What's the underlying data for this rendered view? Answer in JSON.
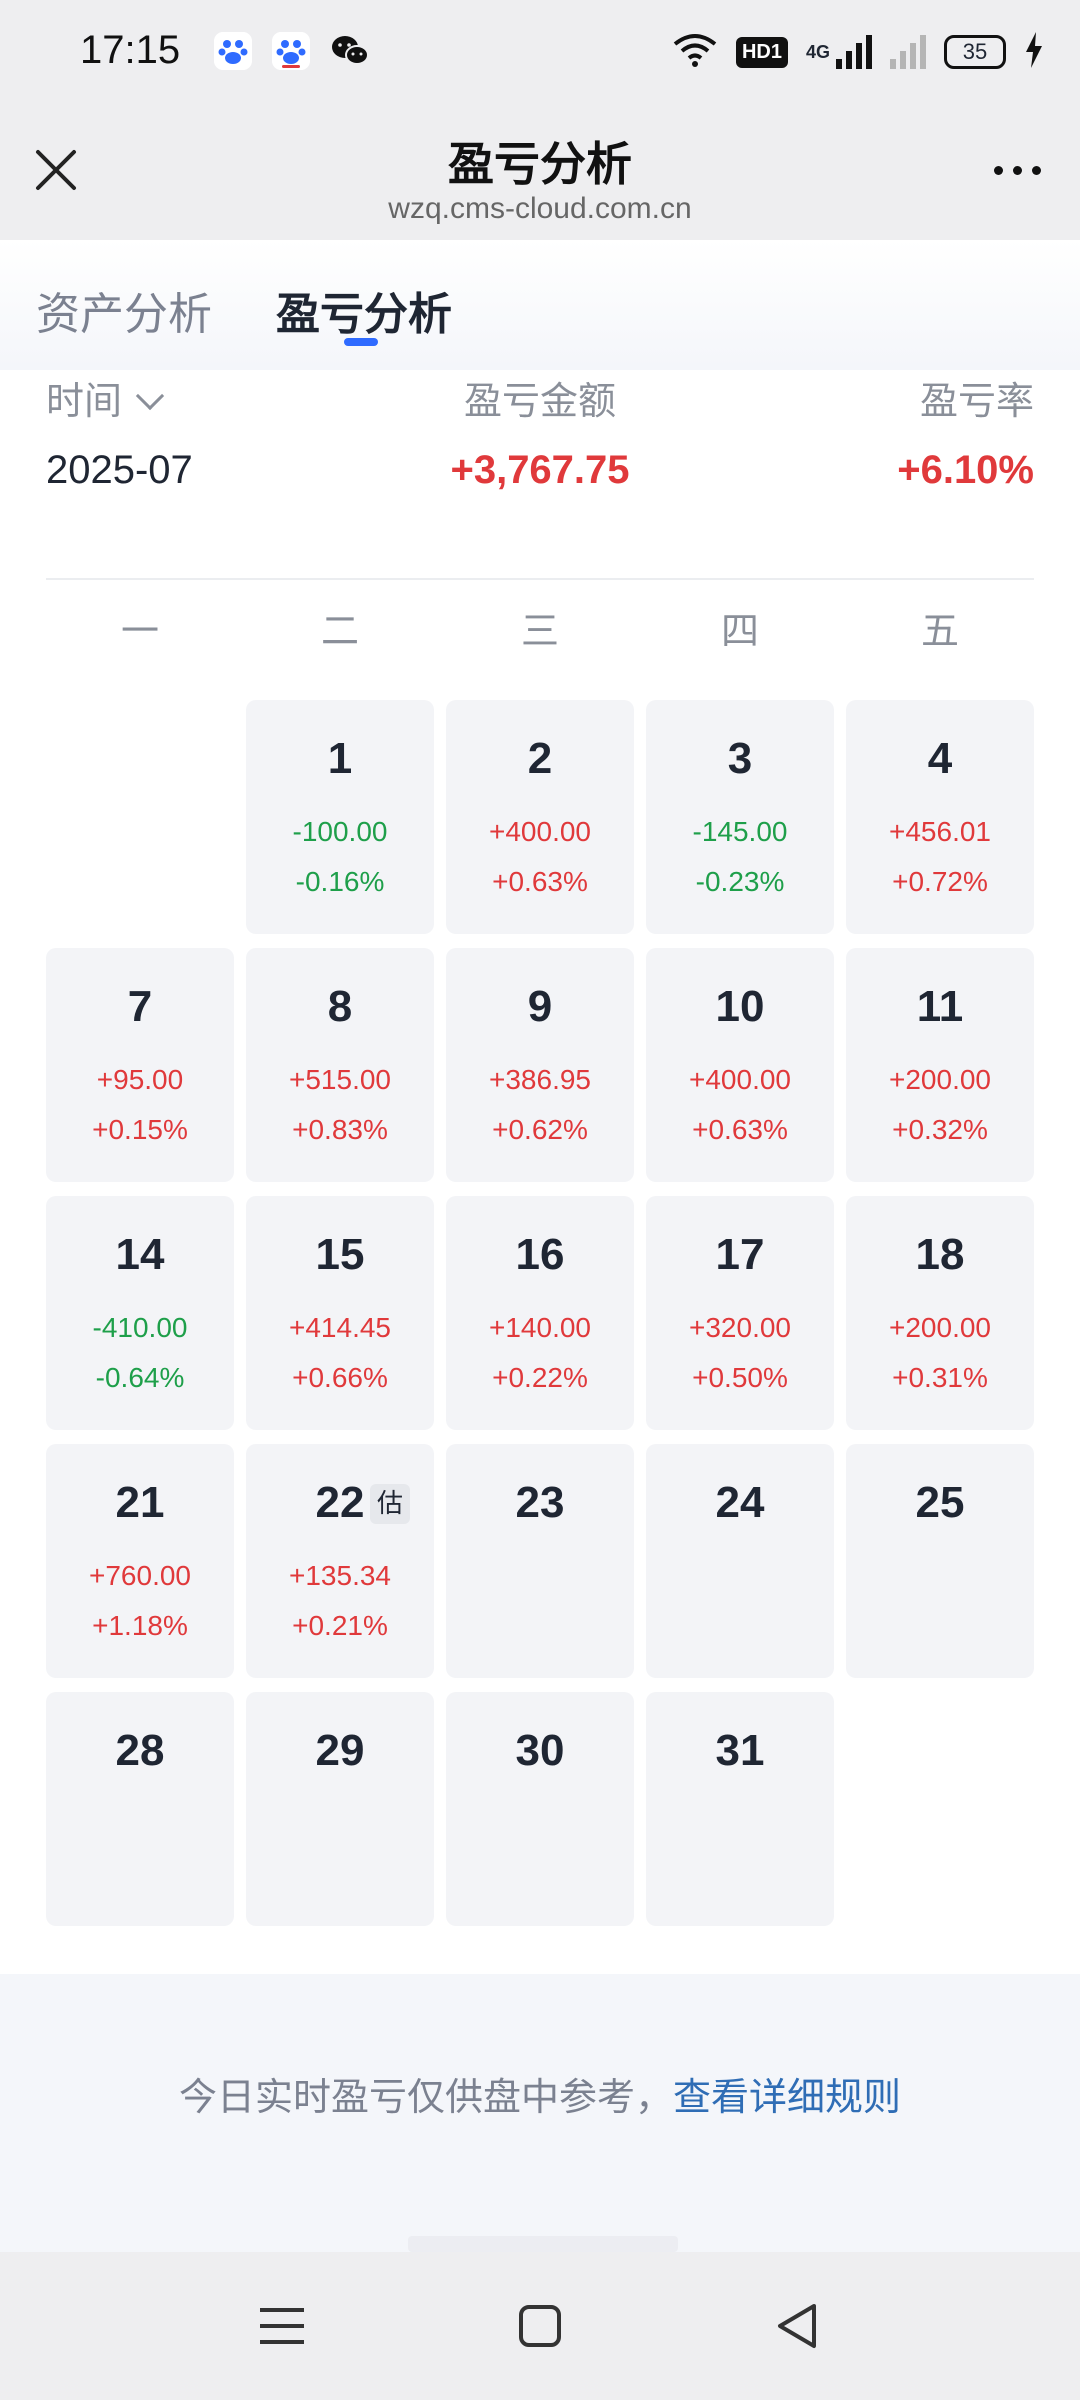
{
  "status_bar": {
    "time": "17:15",
    "icons": [
      "baidu-app-icon",
      "baidu-app-icon",
      "wechat-icon",
      "wifi-icon",
      "hd-icon",
      "signal-icon",
      "battery-icon",
      "charging-icon"
    ],
    "hd_label": "HD1",
    "network_label": "4G",
    "battery_level": "35"
  },
  "titlebar": {
    "title": "盈亏分析",
    "url": "wzq.cms-cloud.com.cn"
  },
  "tabs": [
    {
      "label": "资产分析",
      "active": false
    },
    {
      "label": "盈亏分析",
      "active": true
    }
  ],
  "summary": {
    "time_label": "时间",
    "amount_label": "盈亏金额",
    "rate_label": "盈亏率",
    "month": "2025-07",
    "amount": "+3,767.75",
    "rate": "+6.10%"
  },
  "weekdays": [
    "一",
    "二",
    "三",
    "四",
    "五"
  ],
  "calendar": {
    "estimate_tag": "估",
    "days": [
      {
        "day": "",
        "amount": "",
        "percent": "",
        "trend": "none"
      },
      {
        "day": "1",
        "amount": "-100.00",
        "percent": "-0.16%",
        "trend": "neg"
      },
      {
        "day": "2",
        "amount": "+400.00",
        "percent": "+0.63%",
        "trend": "pos"
      },
      {
        "day": "3",
        "amount": "-145.00",
        "percent": "-0.23%",
        "trend": "neg"
      },
      {
        "day": "4",
        "amount": "+456.01",
        "percent": "+0.72%",
        "trend": "pos"
      },
      {
        "day": "7",
        "amount": "+95.00",
        "percent": "+0.15%",
        "trend": "pos"
      },
      {
        "day": "8",
        "amount": "+515.00",
        "percent": "+0.83%",
        "trend": "pos"
      },
      {
        "day": "9",
        "amount": "+386.95",
        "percent": "+0.62%",
        "trend": "pos"
      },
      {
        "day": "10",
        "amount": "+400.00",
        "percent": "+0.63%",
        "trend": "pos"
      },
      {
        "day": "11",
        "amount": "+200.00",
        "percent": "+0.32%",
        "trend": "pos"
      },
      {
        "day": "14",
        "amount": "-410.00",
        "percent": "-0.64%",
        "trend": "neg"
      },
      {
        "day": "15",
        "amount": "+414.45",
        "percent": "+0.66%",
        "trend": "pos"
      },
      {
        "day": "16",
        "amount": "+140.00",
        "percent": "+0.22%",
        "trend": "pos"
      },
      {
        "day": "17",
        "amount": "+320.00",
        "percent": "+0.50%",
        "trend": "pos"
      },
      {
        "day": "18",
        "amount": "+200.00",
        "percent": "+0.31%",
        "trend": "pos"
      },
      {
        "day": "21",
        "amount": "+760.00",
        "percent": "+1.18%",
        "trend": "pos"
      },
      {
        "day": "22",
        "amount": "+135.34",
        "percent": "+0.21%",
        "trend": "pos",
        "estimated": true
      },
      {
        "day": "23",
        "amount": "",
        "percent": "",
        "trend": "none"
      },
      {
        "day": "24",
        "amount": "",
        "percent": "",
        "trend": "none"
      },
      {
        "day": "25",
        "amount": "",
        "percent": "",
        "trend": "none"
      },
      {
        "day": "28",
        "amount": "",
        "percent": "",
        "trend": "none"
      },
      {
        "day": "29",
        "amount": "",
        "percent": "",
        "trend": "none"
      },
      {
        "day": "30",
        "amount": "",
        "percent": "",
        "trend": "none"
      },
      {
        "day": "31",
        "amount": "",
        "percent": "",
        "trend": "none"
      }
    ]
  },
  "footer": {
    "note": "今日实时盈亏仅供盘中参考，",
    "link": "查看详细规则"
  },
  "colors": {
    "positive": "#e0393b",
    "negative": "#1e9f4a",
    "accent": "#2f6bff",
    "link": "#2f6db5"
  }
}
